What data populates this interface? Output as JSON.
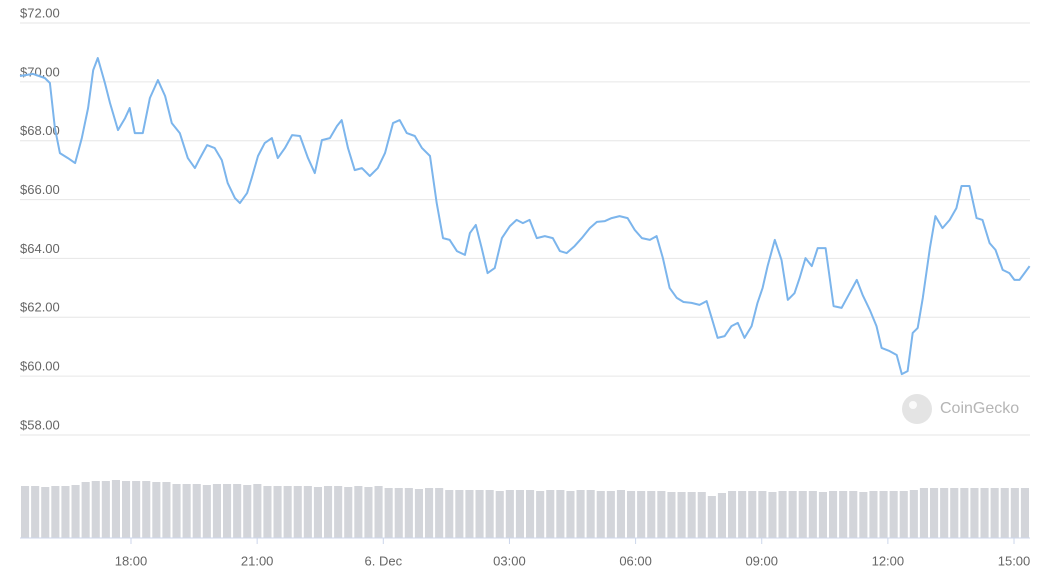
{
  "chart_data": {
    "type": "line",
    "x": [
      15.36,
      15.67,
      15.95,
      16.07,
      16.19,
      16.31,
      16.5,
      16.67,
      16.83,
      16.98,
      17.1,
      17.21,
      17.38,
      17.5,
      17.69,
      17.86,
      17.97,
      18.09,
      18.28,
      18.45,
      18.64,
      18.81,
      18.97,
      19.16,
      19.35,
      19.52,
      19.64,
      19.81,
      19.99,
      20.16,
      20.3,
      20.47,
      20.59,
      20.76,
      20.87,
      21.02,
      21.18,
      21.35,
      21.49,
      21.66,
      21.83,
      22.02,
      22.21,
      22.37,
      22.54,
      22.73,
      22.9,
      23.01,
      23.16,
      23.32,
      23.49,
      23.68,
      23.87,
      24.04,
      24.23,
      24.39,
      24.56,
      24.75,
      24.92,
      25.11,
      25.27,
      25.42,
      25.58,
      25.75,
      25.94,
      26.06,
      26.2,
      26.34,
      26.48,
      26.65,
      26.82,
      27.01,
      27.17,
      27.32,
      27.48,
      27.65,
      27.84,
      28.03,
      28.2,
      28.36,
      28.55,
      28.72,
      28.91,
      29.08,
      29.27,
      29.43,
      29.62,
      29.81,
      29.98,
      30.15,
      30.34,
      30.5,
      30.65,
      30.81,
      30.98,
      31.14,
      31.33,
      31.52,
      31.69,
      31.81,
      31.95,
      32.12,
      32.28,
      32.43,
      32.59,
      32.76,
      32.9,
      33.02,
      33.14,
      33.31,
      33.47,
      33.62,
      33.78,
      33.9,
      34.04,
      34.19,
      34.33,
      34.52,
      34.71,
      34.9,
      35.09,
      35.26,
      35.4,
      35.57,
      35.73,
      35.85,
      36.04,
      36.21,
      36.33,
      36.47,
      36.59,
      36.71,
      36.83,
      37.0,
      37.13,
      37.3,
      37.47,
      37.63,
      37.75,
      37.94,
      38.11,
      38.25,
      38.42,
      38.56,
      38.73,
      38.89,
      39.01,
      39.13,
      39.25,
      39.37
    ],
    "values": [
      70.2,
      70.27,
      70.13,
      69.96,
      68.43,
      67.58,
      67.41,
      67.24,
      68.09,
      69.11,
      70.4,
      70.81,
      69.96,
      69.28,
      68.36,
      68.77,
      69.11,
      68.26,
      68.26,
      69.45,
      70.06,
      69.52,
      68.6,
      68.26,
      67.41,
      67.07,
      67.41,
      67.85,
      67.75,
      67.34,
      66.56,
      66.05,
      65.88,
      66.22,
      66.73,
      67.48,
      67.92,
      68.09,
      67.41,
      67.75,
      68.19,
      68.16,
      67.41,
      66.9,
      68.02,
      68.09,
      68.5,
      68.7,
      67.75,
      67.0,
      67.07,
      66.8,
      67.07,
      67.58,
      68.6,
      68.7,
      68.26,
      68.16,
      67.75,
      67.48,
      65.88,
      64.69,
      64.63,
      64.25,
      64.12,
      64.86,
      65.14,
      64.35,
      63.5,
      63.67,
      64.69,
      65.1,
      65.31,
      65.2,
      65.31,
      64.69,
      64.76,
      64.69,
      64.25,
      64.18,
      64.42,
      64.69,
      65.03,
      65.24,
      65.27,
      65.37,
      65.44,
      65.37,
      64.97,
      64.69,
      64.63,
      64.76,
      64.01,
      63.0,
      62.66,
      62.52,
      62.49,
      62.42,
      62.55,
      61.98,
      61.3,
      61.36,
      61.7,
      61.81,
      61.3,
      61.7,
      62.49,
      63.0,
      63.74,
      64.63,
      63.95,
      62.59,
      62.82,
      63.33,
      64.01,
      63.74,
      64.35,
      64.35,
      62.38,
      62.32,
      62.82,
      63.27,
      62.76,
      62.25,
      61.7,
      60.96,
      60.85,
      60.72,
      60.07,
      60.17,
      61.47,
      61.64,
      62.66,
      64.35,
      65.44,
      65.03,
      65.31,
      65.71,
      66.46,
      66.46,
      65.37,
      65.31,
      64.52,
      64.29,
      63.61,
      63.5,
      63.27,
      63.27,
      63.5,
      63.74
    ],
    "color": "#7cb5ec",
    "xlim": [
      15.36,
      39.38
    ],
    "xticks": [
      {
        "value": 18,
        "label": "18:00"
      },
      {
        "value": 21,
        "label": "21:00"
      },
      {
        "value": 24,
        "label": "6. Dec"
      },
      {
        "value": 27,
        "label": "03:00"
      },
      {
        "value": 30,
        "label": "06:00"
      },
      {
        "value": 33,
        "label": "09:00"
      },
      {
        "value": 36,
        "label": "12:00"
      },
      {
        "value": 39,
        "label": "15:00"
      }
    ],
    "ylim": [
      58,
      72
    ],
    "yticks": [
      {
        "value": 72,
        "label": "$72.00"
      },
      {
        "value": 70,
        "label": "$70.00"
      },
      {
        "value": 68,
        "label": "$68.00"
      },
      {
        "value": 66,
        "label": "$66.00"
      },
      {
        "value": 64,
        "label": "$64.00"
      },
      {
        "value": 62,
        "label": "$62.00"
      },
      {
        "value": 60,
        "label": "$60.00"
      },
      {
        "value": 58,
        "label": "$58.00"
      }
    ],
    "grid": true,
    "volume": {
      "color": "#d3d5da",
      "ylim": [
        0,
        60
      ],
      "values": [
        52,
        52,
        51,
        52,
        52,
        53,
        56,
        57,
        57,
        58,
        57,
        57,
        57,
        56,
        56,
        54,
        54,
        54,
        53,
        54,
        54,
        54,
        53,
        54,
        52,
        52,
        52,
        52,
        52,
        51,
        52,
        52,
        51,
        52,
        51,
        52,
        50,
        50,
        50,
        49,
        50,
        50,
        48,
        48,
        48,
        48,
        48,
        47,
        48,
        48,
        48,
        47,
        48,
        48,
        47,
        48,
        48,
        47,
        47,
        48,
        47,
        47,
        47,
        47,
        46,
        46,
        46,
        46,
        42,
        45,
        47,
        47,
        47,
        47,
        46,
        47,
        47,
        47,
        47,
        46,
        47,
        47,
        47,
        46,
        47,
        47,
        47,
        47,
        48,
        50,
        50,
        50,
        50,
        50,
        50,
        50,
        50,
        50,
        50,
        50
      ]
    },
    "watermark": "CoinGecko"
  }
}
